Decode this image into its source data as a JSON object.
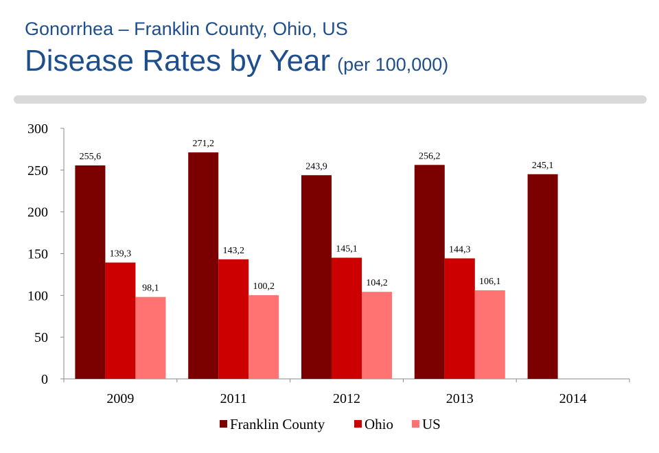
{
  "header": {
    "subtitle": "Gonorrhea – Franklin County, Ohio, US",
    "title": "Disease Rates by Year",
    "title_unit": "(per 100,000)"
  },
  "chart_data": {
    "type": "bar",
    "categories": [
      "2009",
      "2011",
      "2012",
      "2013",
      "2014"
    ],
    "series": [
      {
        "name": "Franklin County",
        "color": "#7b0000",
        "values": [
          255.6,
          271.2,
          243.9,
          256.2,
          245.1
        ],
        "labels": [
          "255,6",
          "271,2",
          "243,9",
          "256,2",
          "245,1"
        ]
      },
      {
        "name": "Ohio",
        "color": "#cc0000",
        "values": [
          139.3,
          143.2,
          145.1,
          144.3,
          null
        ],
        "labels": [
          "139,3",
          "143,2",
          "145,1",
          "144,3",
          null
        ]
      },
      {
        "name": "US",
        "color": "#ff7373",
        "values": [
          98.1,
          100.2,
          104.2,
          106.1,
          null
        ],
        "labels": [
          "98,1",
          "100,2",
          "104,2",
          "106,1",
          null
        ]
      }
    ],
    "ylim": [
      0,
      300
    ],
    "yticks": [
      "0",
      "50",
      "100",
      "150",
      "200",
      "250",
      "300"
    ],
    "grid": false,
    "legend_position": "bottom"
  }
}
